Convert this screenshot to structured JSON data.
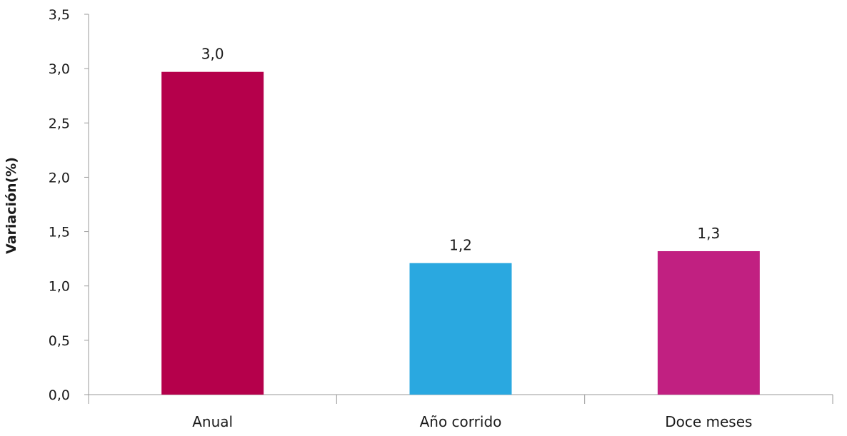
{
  "chart_data": {
    "type": "bar",
    "title": "",
    "xlabel": "",
    "ylabel": "Variación(%)",
    "categories": [
      "Anual",
      "Año corrido",
      "Doce meses"
    ],
    "values": [
      2.97,
      1.21,
      1.32
    ],
    "value_labels": [
      "3,0",
      "1,2",
      "1,3"
    ],
    "colors": [
      "#b5004b",
      "#2aa8e0",
      "#c12081"
    ],
    "ylim": [
      0,
      3.5
    ],
    "yticks": [
      0,
      0.5,
      1.0,
      1.5,
      2.0,
      2.5,
      3.0,
      3.5
    ],
    "ytick_labels": [
      "0,0",
      "0,5",
      "1,0",
      "1,5",
      "2,0",
      "2,5",
      "3,0",
      "3,5"
    ],
    "grid": false,
    "legend": "none"
  }
}
